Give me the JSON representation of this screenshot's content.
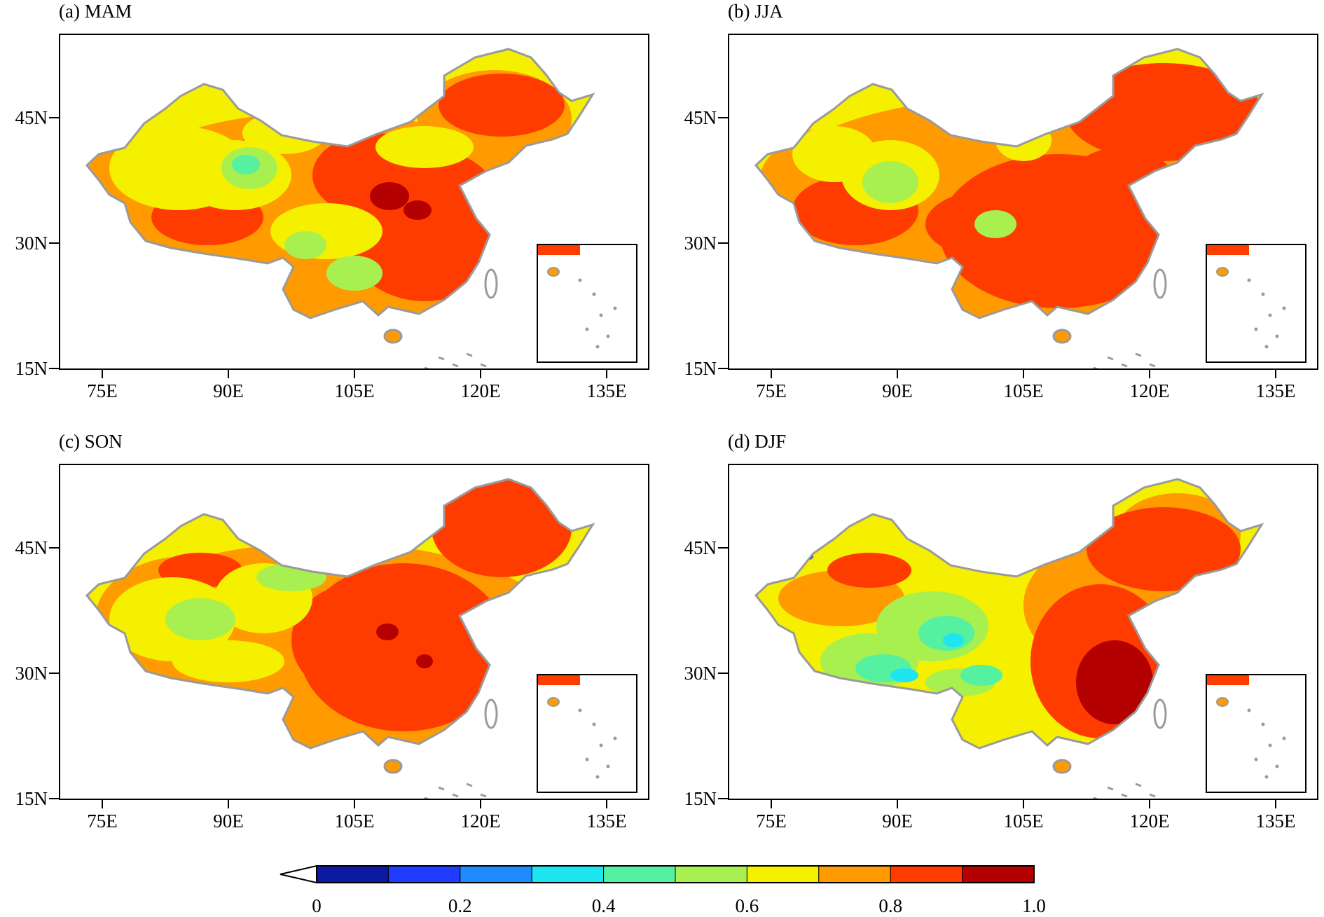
{
  "panels": [
    {
      "title": "(a) MAM",
      "pattern": "mam"
    },
    {
      "title": "(b) JJA",
      "pattern": "jja"
    },
    {
      "title": "(c) SON",
      "pattern": "son"
    },
    {
      "title": "(d) DJF",
      "pattern": "djf"
    }
  ],
  "axes": {
    "y_ticks": [
      "45N",
      "30N",
      "15N"
    ],
    "x_ticks": [
      "75E",
      "90E",
      "105E",
      "120E",
      "135E"
    ]
  },
  "colorbar": {
    "levels": [
      "0",
      "0.2",
      "0.4",
      "0.6",
      "0.8",
      "1.0"
    ],
    "colors": [
      "#0b1aa0",
      "#1f3cff",
      "#1e8cff",
      "#1ee6f0",
      "#55f0a0",
      "#a8f050",
      "#f5f000",
      "#ff9a00",
      "#ff3c00",
      "#b40000"
    ],
    "under_color": "#ffffff"
  },
  "colors": {
    "border": "#9a9a9a",
    "frame": "#000000"
  }
}
